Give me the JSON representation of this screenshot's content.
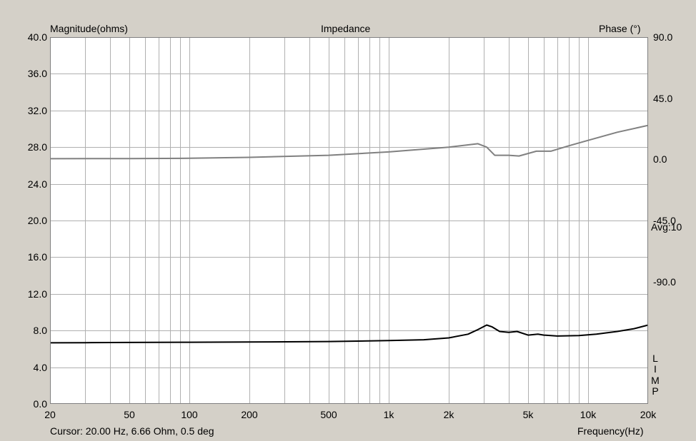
{
  "chart_data": {
    "type": "line",
    "title": "Impedance",
    "left_axis_label": "Magnitude(ohms)",
    "right_axis_label": "Phase (°)",
    "xlabel": "Frequency(Hz)",
    "x_scale": "log",
    "xlim": [
      20,
      20000
    ],
    "ylim_left": [
      0,
      40
    ],
    "ylim_right": [
      -180,
      90
    ],
    "grid": true,
    "x_ticks": [
      {
        "v": 20,
        "label": "20"
      },
      {
        "v": 50,
        "label": "50"
      },
      {
        "v": 100,
        "label": "100"
      },
      {
        "v": 200,
        "label": "200"
      },
      {
        "v": 500,
        "label": "500"
      },
      {
        "v": 1000,
        "label": "1k"
      },
      {
        "v": 2000,
        "label": "2k"
      },
      {
        "v": 5000,
        "label": "5k"
      },
      {
        "v": 10000,
        "label": "10k"
      },
      {
        "v": 20000,
        "label": "20k"
      }
    ],
    "y_left_ticks": [
      "40.0",
      "36.0",
      "32.0",
      "28.0",
      "24.0",
      "20.0",
      "16.0",
      "12.0",
      "8.0",
      "4.0",
      "0.0"
    ],
    "y_right_ticks": [
      {
        "v": 90,
        "label": "90.0"
      },
      {
        "v": 45,
        "label": "45.0"
      },
      {
        "v": 0,
        "label": "0.0"
      },
      {
        "v": -45,
        "label": "-45.0"
      },
      {
        "v": -90,
        "label": "-90.0"
      }
    ],
    "series": [
      {
        "axis": "left",
        "color": "#000000",
        "points": [
          [
            20,
            6.66
          ],
          [
            30,
            6.68
          ],
          [
            50,
            6.7
          ],
          [
            100,
            6.72
          ],
          [
            200,
            6.75
          ],
          [
            500,
            6.8
          ],
          [
            700,
            6.85
          ],
          [
            1000,
            6.9
          ],
          [
            1500,
            7.0
          ],
          [
            2000,
            7.2
          ],
          [
            2500,
            7.6
          ],
          [
            2800,
            8.1
          ],
          [
            3100,
            8.6
          ],
          [
            3300,
            8.4
          ],
          [
            3600,
            7.9
          ],
          [
            4000,
            7.8
          ],
          [
            4400,
            7.9
          ],
          [
            5000,
            7.5
          ],
          [
            5600,
            7.6
          ],
          [
            6000,
            7.5
          ],
          [
            7000,
            7.4
          ],
          [
            9000,
            7.45
          ],
          [
            11000,
            7.6
          ],
          [
            14000,
            7.9
          ],
          [
            17000,
            8.2
          ],
          [
            20000,
            8.6
          ]
        ]
      },
      {
        "axis": "right",
        "color": "#808080",
        "points": [
          [
            20,
            0.5
          ],
          [
            50,
            0.6
          ],
          [
            100,
            0.8
          ],
          [
            200,
            1.5
          ],
          [
            500,
            3
          ],
          [
            1000,
            5.5
          ],
          [
            2000,
            9
          ],
          [
            2800,
            11.5
          ],
          [
            3100,
            9
          ],
          [
            3400,
            3
          ],
          [
            4000,
            3
          ],
          [
            4500,
            2.5
          ],
          [
            5500,
            6
          ],
          [
            6500,
            6
          ],
          [
            8000,
            10
          ],
          [
            10000,
            14
          ],
          [
            14000,
            20
          ],
          [
            20000,
            25
          ]
        ]
      }
    ]
  },
  "labels": {
    "avg": "Avg:10",
    "cursor": "Cursor: 20.00 Hz, 6.66 Ohm, 0.5 deg",
    "limp": [
      "L",
      "I",
      "M",
      "P"
    ]
  },
  "colors": {
    "background": "#d4d0c8",
    "plot_background": "#ffffff",
    "grid": "#b0b0b0",
    "magnitude": "#000000",
    "phase": "#808080"
  }
}
